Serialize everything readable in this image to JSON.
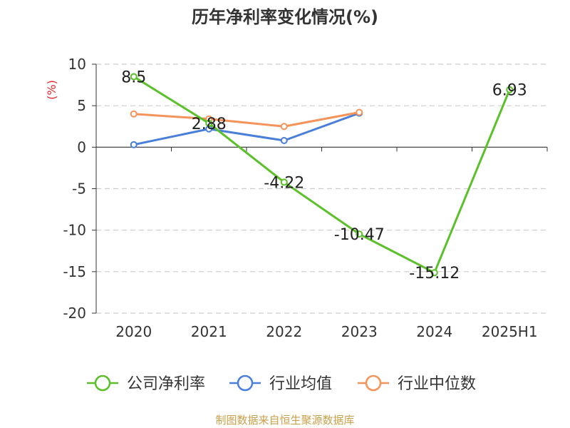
{
  "chart_data": {
    "type": "line",
    "title": "历年净利率变化情况(%)",
    "ylabel": "(%)",
    "xlabel": "",
    "categories": [
      "2020",
      "2021",
      "2022",
      "2023",
      "2024",
      "2025H1"
    ],
    "ylim": [
      -20,
      10
    ],
    "yticks": [
      "10",
      "5",
      "0",
      "-5",
      "-10",
      "-15",
      "-20"
    ],
    "grid": true,
    "legend_position": "bottom",
    "series": [
      {
        "name": "公司净利率",
        "color": "#5cc02a",
        "values": [
          8.5,
          2.88,
          -4.22,
          -10.47,
          -15.12,
          6.93
        ],
        "labels": [
          "8.5",
          "2.88",
          "-4.22",
          "-10.47",
          "-15.12",
          "6.93"
        ]
      },
      {
        "name": "行业均值",
        "color": "#4a7fd9",
        "values": [
          0.3,
          2.2,
          0.8,
          4.1,
          null,
          null
        ]
      },
      {
        "name": "行业中位数",
        "color": "#f4935a",
        "values": [
          4.0,
          3.4,
          2.5,
          4.2,
          null,
          null
        ]
      }
    ]
  },
  "source": "制图数据来自恒生聚源数据库"
}
